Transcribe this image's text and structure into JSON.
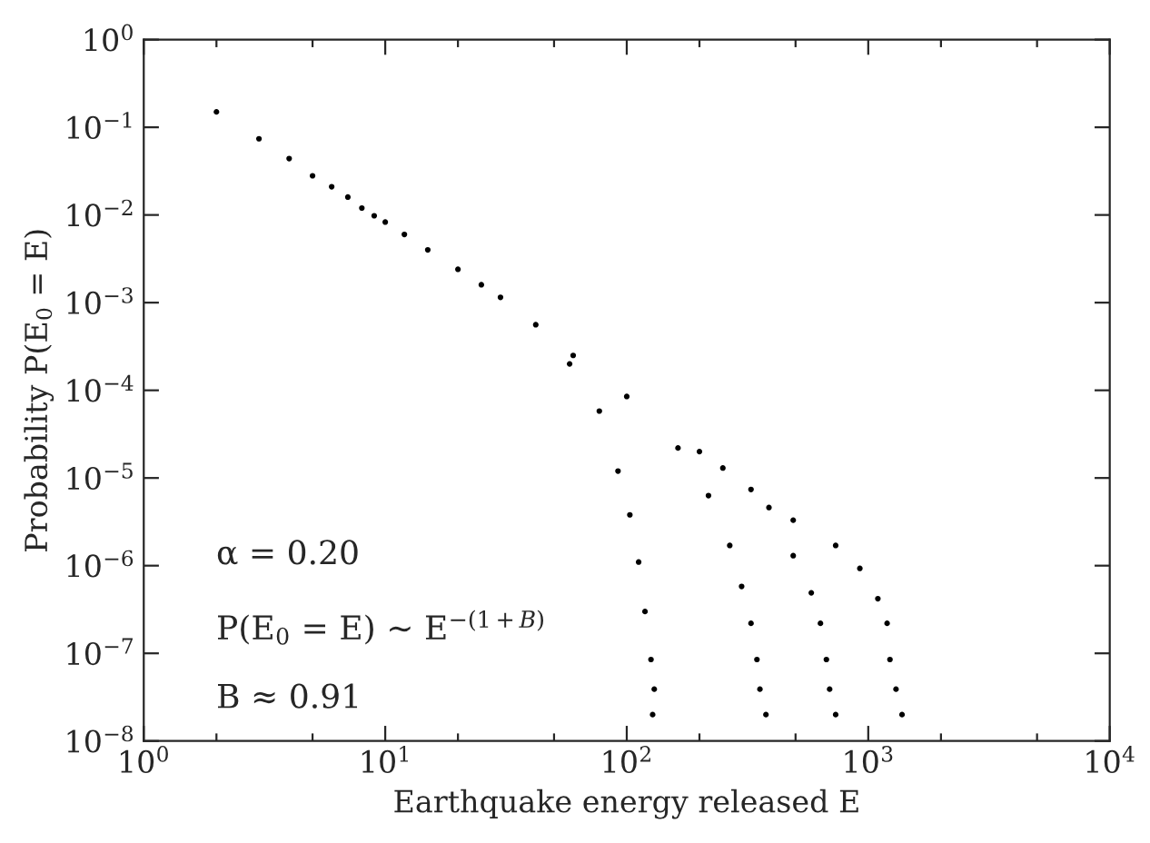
{
  "chart_data": {
    "type": "scatter",
    "xlabel": "Earthquake energy released E",
    "ylabel": "Probability P(E$_{0}$ = E)",
    "log": "xy",
    "xlim": [
      1,
      10000
    ],
    "ylim": [
      1e-08,
      1
    ],
    "xticks": [
      {
        "value": 1,
        "label": "10$^{0}$"
      },
      {
        "value": 2,
        "label": null
      },
      {
        "value": 5,
        "label": null
      },
      {
        "value": 10,
        "label": "10$^{1}$"
      },
      {
        "value": 20,
        "label": null
      },
      {
        "value": 50,
        "label": null
      },
      {
        "value": 100,
        "label": "10$^{2}$"
      },
      {
        "value": 200,
        "label": null
      },
      {
        "value": 500,
        "label": null
      },
      {
        "value": 1000,
        "label": "10$^{3}$"
      },
      {
        "value": 2000,
        "label": null
      },
      {
        "value": 5000,
        "label": null
      },
      {
        "value": 10000,
        "label": "10$^{4}$"
      }
    ],
    "yticks": [
      {
        "value": 1e-08,
        "label": "10$^{−8}$"
      },
      {
        "value": 1e-07,
        "label": "10$^{−7}$"
      },
      {
        "value": 1e-06,
        "label": "10$^{−6}$"
      },
      {
        "value": 1e-05,
        "label": "10$^{−5}$"
      },
      {
        "value": 0.0001,
        "label": "10$^{−4}$"
      },
      {
        "value": 0.001,
        "label": "10$^{−3}$"
      },
      {
        "value": 0.01,
        "label": "10$^{−2}$"
      },
      {
        "value": 0.1,
        "label": "10$^{−1}$"
      },
      {
        "value": 1,
        "label": "10$^{0}$"
      }
    ],
    "marker": "circle",
    "grid": false,
    "legend": false,
    "annotations": [
      "α = 0.20",
      "P(E$_{0}$ = E) ∼ E$^{−(1+B)}$",
      "B ≈ 0.91"
    ],
    "series": [
      {
        "color": "#000000",
        "x": [
          2,
          3,
          4,
          5,
          6,
          7,
          8,
          9,
          10,
          12,
          15,
          20,
          25,
          30,
          42,
          58,
          77,
          92,
          103,
          112,
          119,
          126,
          130,
          128
        ],
        "values": [
          0.15,
          0.074,
          0.044,
          0.028,
          0.021,
          0.016,
          0.012,
          0.0098,
          0.0083,
          0.006,
          0.004,
          0.0024,
          0.0016,
          0.00115,
          0.00056,
          0.0002,
          5.8e-05,
          1.2e-05,
          3.8e-06,
          1.1e-06,
          3e-07,
          8.5e-08,
          3.9e-08,
          2e-08
        ]
      },
      {
        "color": "#000000",
        "x": [
          163,
          218,
          267,
          299,
          327,
          346,
          356,
          377
        ],
        "values": [
          2.2e-05,
          6.3e-06,
          1.7e-06,
          5.8e-07,
          2.2e-07,
          8.5e-08,
          3.9e-08,
          2e-08
        ]
      },
      {
        "color": "#000000",
        "x": [
          250,
          388,
          489,
          581,
          634,
          671,
          692,
          733
        ],
        "values": [
          1.3e-05,
          4.6e-06,
          1.3e-06,
          4.9e-07,
          2.2e-07,
          8.5e-08,
          3.9e-08,
          2e-08
        ]
      },
      {
        "color": "#000000",
        "x": [
          60,
          100,
          200,
          327,
          489,
          733,
          923,
          1096,
          1197,
          1230,
          1303,
          1380
        ],
        "values": [
          0.00025,
          8.5e-05,
          2e-05,
          7.4e-06,
          3.3e-06,
          1.7e-06,
          9.3e-07,
          4.2e-07,
          2.2e-07,
          8.5e-08,
          3.9e-08,
          2e-08
        ]
      }
    ]
  }
}
